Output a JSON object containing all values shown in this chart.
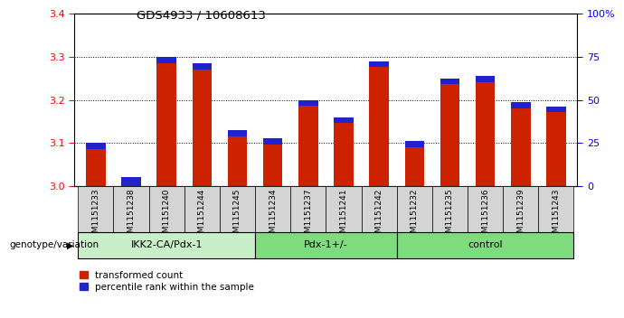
{
  "title": "GDS4933 / 10608613",
  "samples": [
    "GSM1151233",
    "GSM1151238",
    "GSM1151240",
    "GSM1151244",
    "GSM1151245",
    "GSM1151234",
    "GSM1151237",
    "GSM1151241",
    "GSM1151242",
    "GSM1151232",
    "GSM1151235",
    "GSM1151236",
    "GSM1151239",
    "GSM1151243"
  ],
  "red_values": [
    3.1,
    3.02,
    3.3,
    3.285,
    3.13,
    3.11,
    3.2,
    3.16,
    3.29,
    3.105,
    3.25,
    3.255,
    3.195,
    3.185
  ],
  "blue_heights": [
    0.014,
    0.022,
    0.014,
    0.014,
    0.014,
    0.014,
    0.014,
    0.014,
    0.014,
    0.014,
    0.014,
    0.014,
    0.014,
    0.014
  ],
  "group_defs": [
    {
      "start": 0,
      "end": 5,
      "label": "IKK2-CA/Pdx-1",
      "color": "#c8efc8"
    },
    {
      "start": 5,
      "end": 9,
      "label": "Pdx-1+/-",
      "color": "#7edc7e"
    },
    {
      "start": 9,
      "end": 14,
      "label": "control",
      "color": "#7edc7e"
    }
  ],
  "ylim_left": [
    3.0,
    3.4
  ],
  "ylim_right": [
    0,
    100
  ],
  "yticks_left": [
    3.0,
    3.1,
    3.2,
    3.3,
    3.4
  ],
  "yticks_right": [
    0,
    25,
    50,
    75,
    100
  ],
  "ytick_labels_right": [
    "0",
    "25",
    "50",
    "75",
    "100%"
  ],
  "bar_color_red": "#cc2200",
  "bar_color_blue": "#2222cc",
  "bg_color_xticklabel": "#d4d4d4",
  "legend_red": "transformed count",
  "legend_blue": "percentile rank within the sample",
  "bar_width": 0.55,
  "baseline": 3.0
}
